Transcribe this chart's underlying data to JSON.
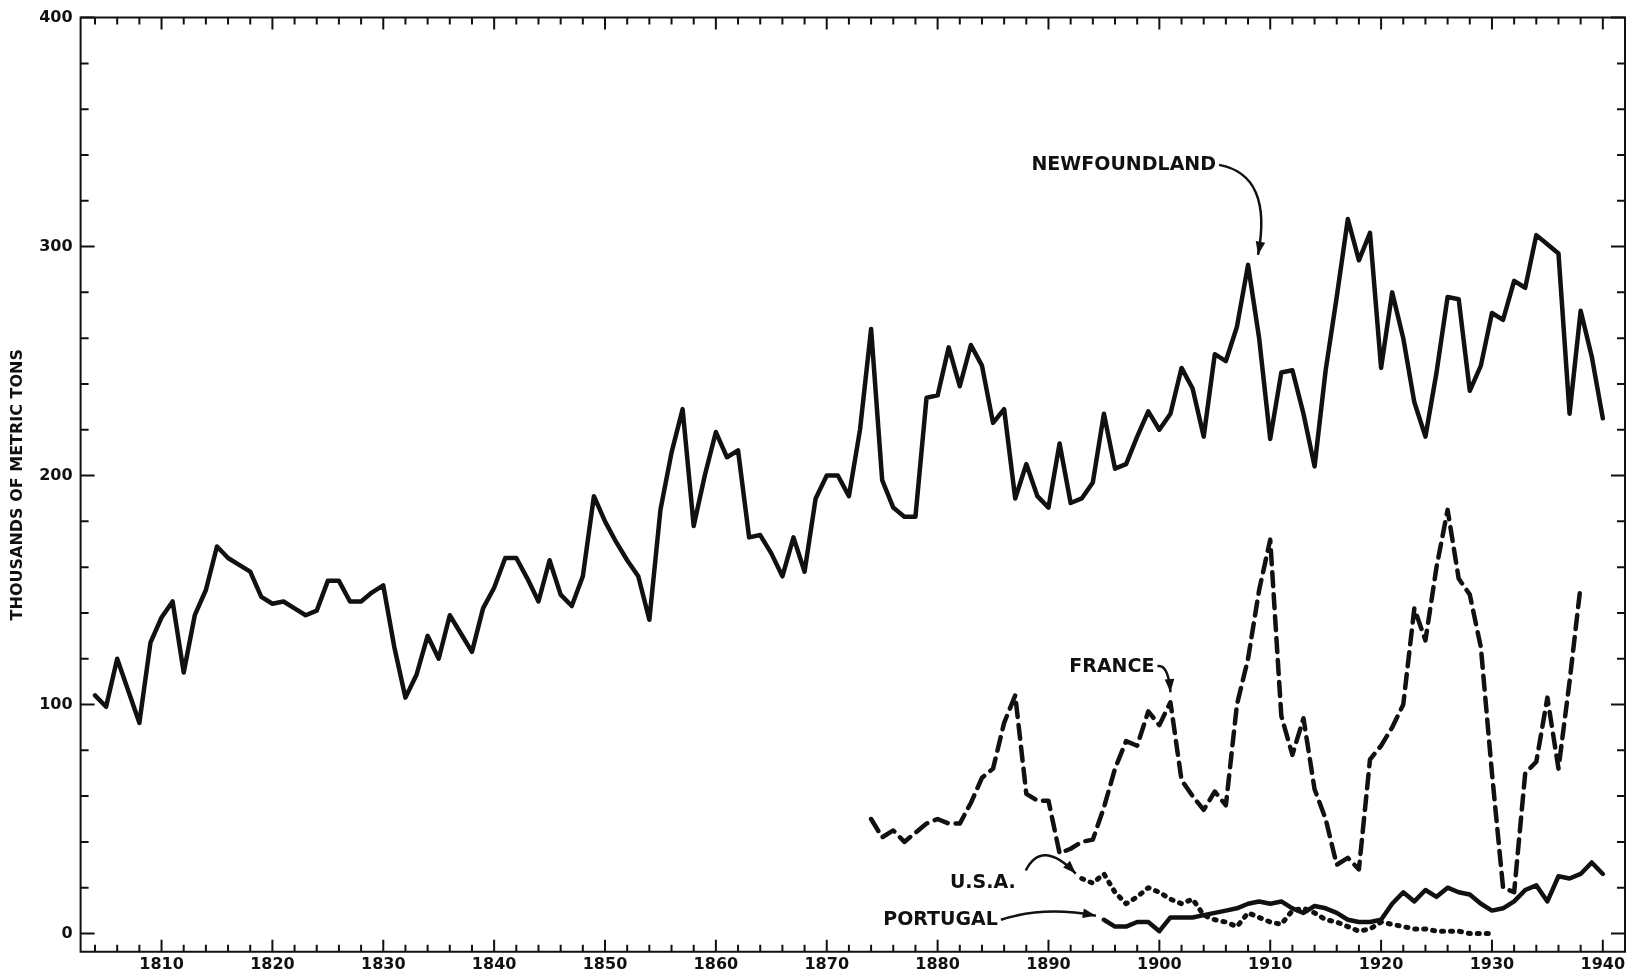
{
  "chart_data": {
    "type": "line",
    "ylabel": "THOUSANDS OF METRIC TONS",
    "legend": false,
    "marker": "none",
    "xlim": [
      1802.7,
      1942
    ],
    "ylim": [
      -8,
      400
    ],
    "xticks": [
      {
        "value": 1804,
        "label": null
      },
      {
        "value": 1806,
        "label": null
      },
      {
        "value": 1808,
        "label": null
      },
      1810,
      {
        "value": 1812,
        "label": null
      },
      {
        "value": 1814,
        "label": null
      },
      {
        "value": 1816,
        "label": null
      },
      {
        "value": 1818,
        "label": null
      },
      1820,
      {
        "value": 1822,
        "label": null
      },
      {
        "value": 1824,
        "label": null
      },
      {
        "value": 1826,
        "label": null
      },
      {
        "value": 1828,
        "label": null
      },
      1830,
      {
        "value": 1832,
        "label": null
      },
      {
        "value": 1834,
        "label": null
      },
      {
        "value": 1836,
        "label": null
      },
      {
        "value": 1838,
        "label": null
      },
      1840,
      {
        "value": 1842,
        "label": null
      },
      {
        "value": 1844,
        "label": null
      },
      {
        "value": 1846,
        "label": null
      },
      {
        "value": 1848,
        "label": null
      },
      1850,
      {
        "value": 1852,
        "label": null
      },
      {
        "value": 1854,
        "label": null
      },
      {
        "value": 1856,
        "label": null
      },
      {
        "value": 1858,
        "label": null
      },
      1860,
      {
        "value": 1862,
        "label": null
      },
      {
        "value": 1864,
        "label": null
      },
      {
        "value": 1866,
        "label": null
      },
      {
        "value": 1868,
        "label": null
      },
      1870,
      {
        "value": 1872,
        "label": null
      },
      {
        "value": 1874,
        "label": null
      },
      {
        "value": 1876,
        "label": null
      },
      {
        "value": 1878,
        "label": null
      },
      1880,
      {
        "value": 1882,
        "label": null
      },
      {
        "value": 1884,
        "label": null
      },
      {
        "value": 1886,
        "label": null
      },
      {
        "value": 1888,
        "label": null
      },
      1890,
      {
        "value": 1892,
        "label": null
      },
      {
        "value": 1894,
        "label": null
      },
      {
        "value": 1896,
        "label": null
      },
      {
        "value": 1898,
        "label": null
      },
      1900,
      {
        "value": 1902,
        "label": null
      },
      {
        "value": 1904,
        "label": null
      },
      {
        "value": 1906,
        "label": null
      },
      {
        "value": 1908,
        "label": null
      },
      1910,
      {
        "value": 1912,
        "label": null
      },
      {
        "value": 1914,
        "label": null
      },
      {
        "value": 1916,
        "label": null
      },
      {
        "value": 1918,
        "label": null
      },
      1920,
      {
        "value": 1922,
        "label": null
      },
      {
        "value": 1924,
        "label": null
      },
      {
        "value": 1926,
        "label": null
      },
      {
        "value": 1928,
        "label": null
      },
      1930,
      {
        "value": 1932,
        "label": null
      },
      {
        "value": 1934,
        "label": null
      },
      {
        "value": 1936,
        "label": null
      },
      {
        "value": 1938,
        "label": null
      },
      1940
    ],
    "yticks": [
      0,
      {
        "value": 20,
        "label": null
      },
      {
        "value": 40,
        "label": null
      },
      {
        "value": 60,
        "label": null
      },
      {
        "value": 80,
        "label": null
      },
      100,
      {
        "value": 120,
        "label": null
      },
      {
        "value": 140,
        "label": null
      },
      {
        "value": 160,
        "label": null
      },
      {
        "value": 180,
        "label": null
      },
      200,
      {
        "value": 220,
        "label": null
      },
      {
        "value": 240,
        "label": null
      },
      {
        "value": 260,
        "label": null
      },
      {
        "value": 280,
        "label": null
      },
      300,
      {
        "value": 320,
        "label": null
      },
      {
        "value": 340,
        "label": null
      },
      {
        "value": 360,
        "label": null
      },
      {
        "value": 380,
        "label": null
      },
      400
    ],
    "series": [
      {
        "name": "NEWFOUNDLAND",
        "color": "#111111",
        "line_style": "solid",
        "x": [
          1804,
          1805,
          1806,
          1807,
          1808,
          1809,
          1810,
          1811,
          1812,
          1813,
          1814,
          1815,
          1816,
          1817,
          1818,
          1819,
          1820,
          1821,
          1822,
          1823,
          1824,
          1825,
          1826,
          1827,
          1828,
          1829,
          1830,
          1831,
          1832,
          1833,
          1834,
          1835,
          1836,
          1837,
          1838,
          1839,
          1840,
          1841,
          1842,
          1843,
          1844,
          1845,
          1846,
          1847,
          1848,
          1849,
          1850,
          1851,
          1852,
          1853,
          1854,
          1855,
          1856,
          1857,
          1858,
          1859,
          1860,
          1861,
          1862,
          1863,
          1864,
          1865,
          1866,
          1867,
          1868,
          1869,
          1870,
          1871,
          1872,
          1873,
          1874,
          1875,
          1876,
          1877,
          1878,
          1879,
          1880,
          1881,
          1882,
          1883,
          1884,
          1885,
          1886,
          1887,
          1888,
          1889,
          1890,
          1891,
          1892,
          1893,
          1894,
          1895,
          1896,
          1897,
          1898,
          1899,
          1900,
          1901,
          1902,
          1903,
          1904,
          1905,
          1906,
          1907,
          1908,
          1909,
          1910,
          1911,
          1912,
          1913,
          1914,
          1915,
          1916,
          1917,
          1918,
          1919,
          1920,
          1921,
          1922,
          1923,
          1924,
          1925,
          1926,
          1927,
          1928,
          1929,
          1930,
          1931,
          1932,
          1933,
          1934,
          1935,
          1936,
          1937,
          1938,
          1939,
          1940
        ],
        "values": [
          104,
          99,
          120,
          106,
          92,
          127,
          138,
          145,
          114,
          139,
          150,
          169,
          164,
          161,
          158,
          147,
          144,
          145,
          142,
          139,
          141,
          154,
          154,
          145,
          145,
          149,
          152,
          125,
          103,
          113,
          130,
          120,
          139,
          131,
          123,
          142,
          151,
          164,
          164,
          155,
          145,
          163,
          148,
          143,
          156,
          191,
          180,
          171,
          163,
          156,
          137,
          185,
          210,
          229,
          178,
          200,
          219,
          208,
          211,
          173,
          174,
          166,
          156,
          173,
          158,
          190,
          200,
          200,
          191,
          220,
          264,
          198,
          186,
          182,
          182,
          234,
          235,
          256,
          239,
          257,
          248,
          223,
          229,
          190,
          205,
          191,
          186,
          214,
          188,
          190,
          197,
          227,
          203,
          205,
          217,
          228,
          220,
          227,
          247,
          238,
          217,
          253,
          250,
          265,
          292,
          260,
          216,
          245,
          246,
          227,
          204,
          246,
          278,
          312,
          294,
          306,
          247,
          280,
          260,
          232,
          217,
          245,
          278,
          277,
          237,
          248,
          271,
          268,
          285,
          282,
          305,
          301,
          297,
          227,
          272,
          252,
          225
        ]
      },
      {
        "name": "FRANCE",
        "color": "#111111",
        "line_style": "dashed",
        "x": [
          1874,
          1875,
          1876,
          1877,
          1878,
          1879,
          1880,
          1881,
          1882,
          1883,
          1884,
          1885,
          1886,
          1887,
          1888,
          1889,
          1890,
          1891,
          1892,
          1893,
          1894,
          1895,
          1896,
          1897,
          1898,
          1899,
          1900,
          1901,
          1902,
          1903,
          1904,
          1905,
          1906,
          1907,
          1908,
          1909,
          1910,
          1911,
          1912,
          1913,
          1914,
          1915,
          1916,
          1917,
          1918,
          1919,
          1920,
          1921,
          1922,
          1923,
          1924,
          1925,
          1926,
          1927,
          1928,
          1929,
          1930,
          1931,
          1932,
          1933,
          1934,
          1935,
          1936,
          1937,
          1938
        ],
        "values": [
          50,
          42,
          45,
          40,
          44,
          48,
          50,
          48,
          48,
          57,
          68,
          72,
          92,
          104,
          61,
          58,
          58,
          35,
          37,
          40,
          41,
          55,
          72,
          84,
          82,
          97,
          91,
          101,
          67,
          60,
          54,
          62,
          56,
          100,
          120,
          150,
          172,
          95,
          78,
          94,
          63,
          50,
          30,
          33,
          28,
          76,
          82,
          90,
          100,
          142,
          128,
          160,
          185,
          155,
          148,
          125,
          70,
          20,
          18,
          70,
          75,
          103,
          72,
          110,
          152
        ]
      },
      {
        "name": "U.S.A.",
        "color": "#111111",
        "line_style": "dotted",
        "x": [
          1893,
          1894,
          1895,
          1896,
          1897,
          1898,
          1899,
          1900,
          1901,
          1902,
          1903,
          1904,
          1905,
          1906,
          1907,
          1908,
          1909,
          1910,
          1911,
          1912,
          1913,
          1914,
          1915,
          1916,
          1917,
          1918,
          1919,
          1920,
          1921,
          1922,
          1923,
          1924,
          1925,
          1926,
          1927,
          1928,
          1929,
          1930
        ],
        "values": [
          24,
          22,
          26,
          18,
          13,
          16,
          20,
          18,
          15,
          13,
          15,
          8,
          6,
          5,
          3,
          9,
          7,
          5,
          4,
          10,
          11,
          9,
          6,
          5,
          3,
          1,
          2,
          5,
          4,
          3,
          2,
          2,
          1,
          1,
          1,
          0,
          0,
          0
        ]
      },
      {
        "name": "PORTUGAL",
        "color": "#111111",
        "line_style": "solid",
        "x": [
          1895,
          1896,
          1897,
          1898,
          1899,
          1900,
          1901,
          1902,
          1903,
          1904,
          1905,
          1906,
          1907,
          1908,
          1909,
          1910,
          1911,
          1912,
          1913,
          1914,
          1915,
          1916,
          1917,
          1918,
          1919,
          1920,
          1921,
          1922,
          1923,
          1924,
          1925,
          1926,
          1927,
          1928,
          1929,
          1930,
          1931,
          1932,
          1933,
          1934,
          1935,
          1936,
          1937,
          1938,
          1939,
          1940
        ],
        "values": [
          6,
          3,
          3,
          5,
          5,
          1,
          7,
          7,
          7,
          8,
          9,
          10,
          11,
          13,
          14,
          13,
          14,
          11,
          9,
          12,
          11,
          9,
          6,
          5,
          5,
          6,
          13,
          18,
          14,
          19,
          16,
          20,
          18,
          17,
          13,
          10,
          11,
          14,
          19,
          21,
          14,
          25,
          24,
          26,
          31,
          26
        ]
      }
    ]
  }
}
